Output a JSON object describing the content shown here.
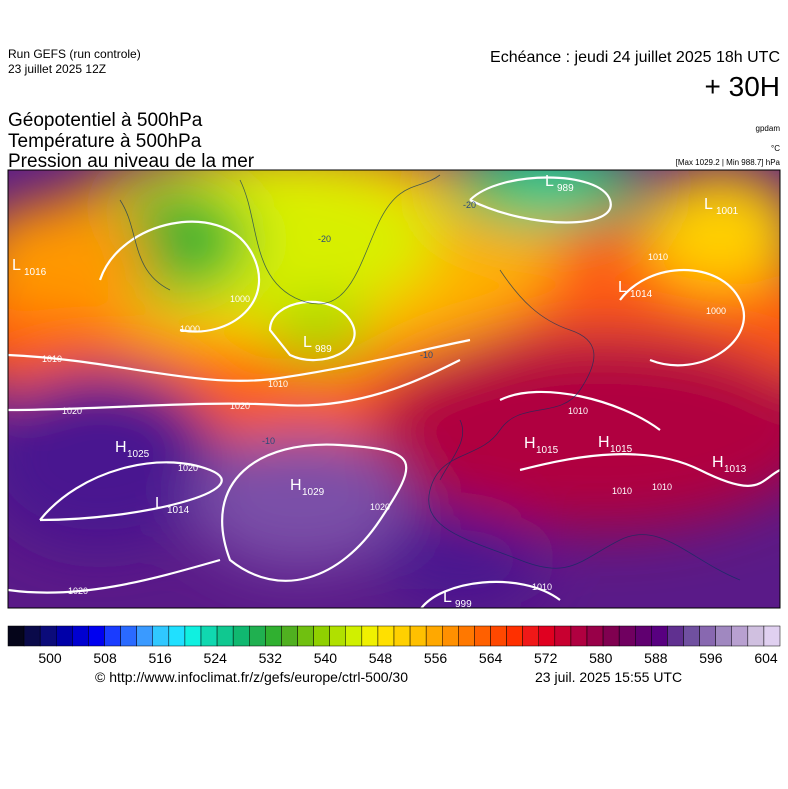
{
  "header": {
    "run": "Run GEFS (run controle)",
    "run_date": "23 juillet 2025 12Z",
    "echeance": "Echéance : jeudi 24 juillet 2025 18h UTC",
    "lead": "+ 30H"
  },
  "titles": [
    "Géopotentiel à 500hPa",
    "Température à 500hPa",
    "Pression au niveau de la mer"
  ],
  "units": [
    "gpdam",
    "°C",
    "[Max 1029.2 | Min 988.7] hPa"
  ],
  "pressure_centers": [
    {
      "symbol": "L",
      "value": 989
    },
    {
      "symbol": "L",
      "value": 989
    },
    {
      "symbol": "L",
      "value": 1001
    },
    {
      "symbol": "L",
      "value": 1014
    },
    {
      "symbol": "H",
      "value": 1029
    },
    {
      "symbol": "H",
      "value": 1025
    },
    {
      "symbol": "L",
      "value": 1014
    },
    {
      "symbol": "L",
      "value": 999
    },
    {
      "symbol": "H",
      "value": 1015
    },
    {
      "symbol": "H",
      "value": 1015
    },
    {
      "symbol": "H",
      "value": 1013
    },
    {
      "symbol": "L",
      "value": 1016
    }
  ],
  "isobar_labels": [
    1010,
    1020,
    1020,
    1010,
    1000,
    1000,
    1020,
    1020,
    1020,
    1010,
    1010,
    1010,
    1010,
    1000,
    1010
  ],
  "temperature_labels": [
    -20,
    -20,
    -10,
    -10
  ],
  "colorbar": {
    "colors": [
      "#05051a",
      "#0a0a4a",
      "#0b0b7a",
      "#0000a8",
      "#0000d0",
      "#0000f0",
      "#1a3cff",
      "#2a6aff",
      "#3a9aff",
      "#30c8ff",
      "#20e0ff",
      "#10f0e0",
      "#10d8b0",
      "#10c890",
      "#10b870",
      "#20b050",
      "#30b030",
      "#50b020",
      "#70c010",
      "#90d000",
      "#b0e000",
      "#d0f000",
      "#f0f000",
      "#ffe000",
      "#ffd000",
      "#ffc000",
      "#ffa800",
      "#ff9000",
      "#ff7800",
      "#ff6000",
      "#ff4800",
      "#ff3000",
      "#f01818",
      "#e00020",
      "#c80030",
      "#b00040",
      "#980048",
      "#800050",
      "#700060",
      "#600070",
      "#580080",
      "#603090",
      "#7050a0",
      "#8868b0",
      "#a088c0",
      "#b8a0d0",
      "#d0c0e0",
      "#e0d0f0"
    ],
    "ticks": [
      500,
      508,
      516,
      524,
      532,
      540,
      548,
      556,
      564,
      572,
      580,
      588,
      596,
      604
    ]
  },
  "footer": {
    "source": "© http://www.infoclimat.fr/z/gefs/europe/ctrl-500/30",
    "generated": "23 juil. 2025 15:55 UTC"
  }
}
